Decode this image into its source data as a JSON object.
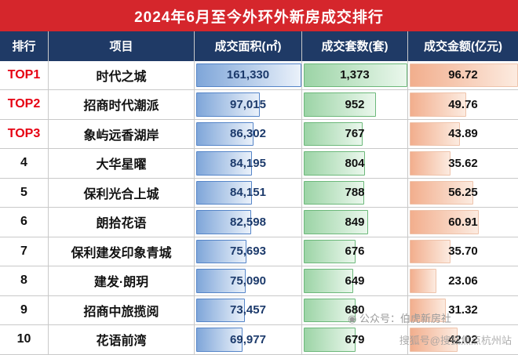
{
  "chart_data": {
    "type": "table",
    "title": "2024年6月至今外环外新房成交排行",
    "columns": [
      "排行",
      "项目",
      "成交面积(㎡)",
      "成交套数(套)",
      "成交金额(亿元)"
    ],
    "rows": [
      {
        "rank": "TOP1",
        "project": "时代之城",
        "area": "161,330",
        "units": "1,373",
        "amount": "96.72"
      },
      {
        "rank": "TOP2",
        "project": "招商时代潮派",
        "area": "97,015",
        "units": "952",
        "amount": "49.76"
      },
      {
        "rank": "TOP3",
        "project": "象屿远香湖岸",
        "area": "86,302",
        "units": "767",
        "amount": "43.89"
      },
      {
        "rank": "4",
        "project": "大华星曜",
        "area": "84,195",
        "units": "804",
        "amount": "35.62"
      },
      {
        "rank": "5",
        "project": "保利光合上城",
        "area": "84,151",
        "units": "788",
        "amount": "56.25"
      },
      {
        "rank": "6",
        "project": "朗拾花语",
        "area": "82,598",
        "units": "849",
        "amount": "60.91"
      },
      {
        "rank": "7",
        "project": "保利建发印象青城",
        "area": "75,693",
        "units": "676",
        "amount": "35.70"
      },
      {
        "rank": "8",
        "project": "建发·朗玥",
        "area": "75,090",
        "units": "649",
        "amount": "23.06"
      },
      {
        "rank": "9",
        "project": "招商中旅揽阅",
        "area": "73,457",
        "units": "680",
        "amount": "31.32"
      },
      {
        "rank": "10",
        "project": "花语前湾",
        "area": "69,977",
        "units": "679",
        "amount": "42.02"
      }
    ],
    "data_bars": {
      "area_max": 161330,
      "units_max": 1373,
      "amount_max": 96.72
    },
    "legend_position": "none",
    "grid": "table-lines"
  },
  "watermarks": {
    "wechat": "◉ 公众号：伯虎新房社",
    "sohu": "搜狐号@搜狐焦点杭州站"
  },
  "colors": {
    "title_bg": "#d5262c",
    "title_text": "#ffffff",
    "header_bg": "#1f3a66",
    "header_text": "#ffffff",
    "rank_top": "#e60012",
    "text_dark": "#111111",
    "area_text": "#1c3a6b",
    "bar_blue_start": "#7fa6d9",
    "bar_blue_end": "#eaf1fa",
    "bar_blue_border": "#5585c8",
    "bar_green_start": "#9cd4a6",
    "bar_green_end": "#eaf7ec",
    "bar_green_border": "#6cb87a",
    "bar_orange_start": "#f2ae8d",
    "bar_orange_end": "#fcebe0",
    "bar_orange_border": "#eec3ab",
    "grid_line": "#c9c9c9",
    "watermark": "#9b9b9b"
  }
}
